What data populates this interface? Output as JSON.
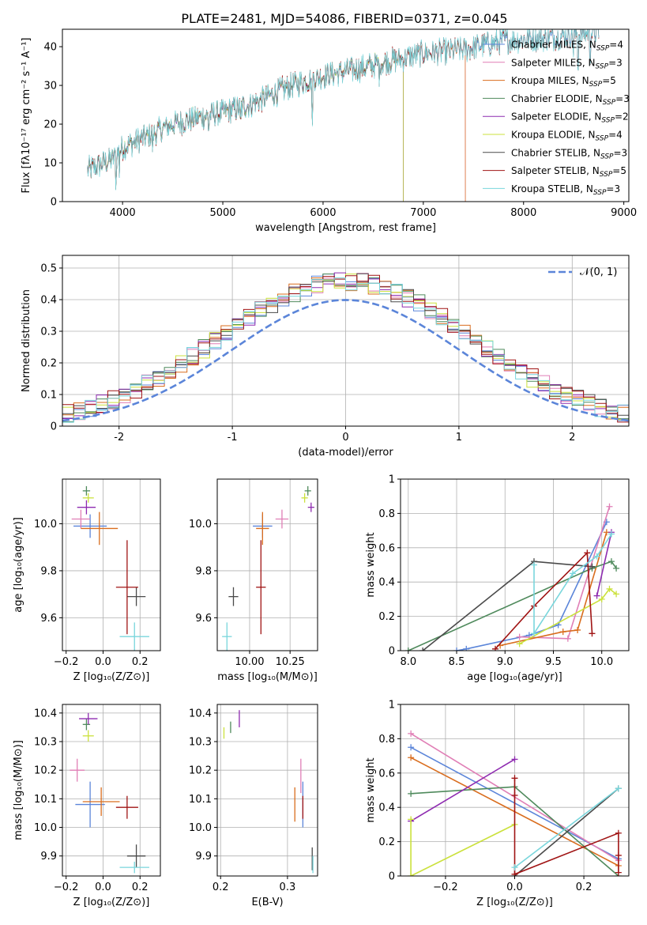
{
  "title": "PLATE=2481, MJD=54086, FIBERID=0371, z=0.045",
  "colors": {
    "Chabrier MILES": "#5b85d9",
    "Salpeter MILES": "#e07fb6",
    "Kroupa MILES": "#d96d1e",
    "Chabrier ELODIE": "#4f8a5c",
    "Salpeter ELODIE": "#8e2bb0",
    "Kroupa ELODIE": "#cbe13c",
    "Chabrier STELIB": "#4a4a4a",
    "Salpeter STELIB": "#a01414",
    "Kroupa STELIB": "#79d6dc"
  },
  "chart_data": [
    {
      "id": "spectrum",
      "type": "line",
      "title": "",
      "xlabel": "wavelength [Angstrom, rest frame]",
      "ylabel": "Flux [fλ10⁻¹⁷ erg cm⁻² s⁻¹ A⁻¹]",
      "xlim": [
        3400,
        9050
      ],
      "ylim": [
        0,
        44.5
      ],
      "xticks": [
        4000,
        5000,
        6000,
        7000,
        8000,
        9000
      ],
      "yticks": [
        0,
        10,
        20,
        30,
        40
      ],
      "grid": false,
      "legend_position": "right",
      "spectrum_range": [
        3650,
        8750
      ],
      "continuum": [
        [
          3650,
          8
        ],
        [
          3900,
          11
        ],
        [
          4000,
          14
        ],
        [
          4300,
          17.5
        ],
        [
          4500,
          20
        ],
        [
          4800,
          22
        ],
        [
          5000,
          23
        ],
        [
          5200,
          24.5
        ],
        [
          5400,
          26.5
        ],
        [
          5600,
          29
        ],
        [
          5800,
          31
        ],
        [
          6000,
          32.5
        ],
        [
          6200,
          33.5
        ],
        [
          6400,
          34.5
        ],
        [
          6600,
          36
        ],
        [
          6800,
          37
        ],
        [
          7000,
          38.3
        ],
        [
          7200,
          38.7
        ],
        [
          7400,
          39.2
        ],
        [
          7600,
          40.5
        ],
        [
          7800,
          41.5
        ],
        [
          8000,
          42
        ],
        [
          8200,
          42.3
        ],
        [
          8500,
          43
        ],
        [
          8750,
          44
        ]
      ],
      "series": [
        {
          "name": "Chabrier MILES",
          "label": "Chabrier MILES, N",
          "sub": "SSP",
          "n": "4",
          "end_wavelength": 8750
        },
        {
          "name": "Salpeter MILES",
          "label": "Salpeter MILES, N",
          "sub": "SSP",
          "n": "3",
          "end_wavelength": 7420
        },
        {
          "name": "Kroupa MILES",
          "label": "Kroupa MILES, N",
          "sub": "SSP",
          "n": "5",
          "end_wavelength": 7420
        },
        {
          "name": "Chabrier ELODIE",
          "label": "Chabrier ELODIE, N",
          "sub": "SSP",
          "n": "3",
          "end_wavelength": 6800
        },
        {
          "name": "Salpeter ELODIE",
          "label": "Salpeter ELODIE, N",
          "sub": "SSP",
          "n": "2",
          "end_wavelength": 6800
        },
        {
          "name": "Kroupa ELODIE",
          "label": "Kroupa ELODIE, N",
          "sub": "SSP",
          "n": "4",
          "end_wavelength": 6800
        },
        {
          "name": "Chabrier STELIB",
          "label": "Chabrier STELIB, N",
          "sub": "SSP",
          "n": "3",
          "end_wavelength": 8750
        },
        {
          "name": "Salpeter STELIB",
          "label": "Salpeter STELIB, N",
          "sub": "SSP",
          "n": "5",
          "end_wavelength": 8750
        },
        {
          "name": "Kroupa STELIB",
          "label": "Kroupa STELIB, N",
          "sub": "SSP",
          "n": "3",
          "end_wavelength": 8750
        }
      ]
    },
    {
      "id": "residuals",
      "type": "line",
      "xlabel": "(data-model)/error",
      "ylabel": "Normed distribution",
      "xlim": [
        -2.5,
        2.5
      ],
      "ylim": [
        0,
        0.54
      ],
      "xticks": [
        -2,
        -1,
        0,
        1,
        2
      ],
      "yticks": [
        0.0,
        0.1,
        0.2,
        0.3,
        0.4,
        0.5
      ],
      "grid": true,
      "legend": [
        {
          "label": "𝒩(0, 1)",
          "style": "dashed",
          "color": "#5b85d9"
        }
      ],
      "legend_position": "top-right",
      "bin_width": 0.1,
      "histogram_shape": "normal with sigma≈1, peak≈0.46-0.52 near 0",
      "series_count": 9
    },
    {
      "id": "age-vs-Z",
      "type": "scatter",
      "xlabel": "Z [log₁₀(Z/Z⊙)]",
      "ylabel": "age  [log₁₀(age/yr)]",
      "xlim": [
        -0.22,
        0.31
      ],
      "ylim": [
        9.46,
        10.19
      ],
      "xticks": [
        -0.2,
        0.0,
        0.2
      ],
      "xticklabels": [
        "−0.2",
        "0.0",
        "0.2"
      ],
      "yticks": [
        9.6,
        9.8,
        10.0
      ],
      "yticklabels": [
        "9.6",
        "9.8",
        "10.0"
      ],
      "grid": true,
      "points": [
        {
          "series": "Chabrier MILES",
          "x": -0.07,
          "y": 9.99,
          "xerr": 0.09,
          "yerr": 0.05
        },
        {
          "series": "Salpeter MILES",
          "x": -0.12,
          "y": 10.02,
          "xerr": 0.05,
          "yerr": 0.04
        },
        {
          "series": "Kroupa MILES",
          "x": -0.02,
          "y": 9.98,
          "xerr": 0.1,
          "yerr": 0.07
        },
        {
          "series": "Chabrier ELODIE",
          "x": -0.09,
          "y": 10.14,
          "xerr": 0.02,
          "yerr": 0.02
        },
        {
          "series": "Salpeter ELODIE",
          "x": -0.09,
          "y": 10.07,
          "xerr": 0.05,
          "yerr": 0.03
        },
        {
          "series": "Kroupa ELODIE",
          "x": -0.08,
          "y": 10.11,
          "xerr": 0.03,
          "yerr": 0.02
        },
        {
          "series": "Chabrier STELIB",
          "x": 0.18,
          "y": 9.69,
          "xerr": 0.05,
          "yerr": 0.04
        },
        {
          "series": "Salpeter STELIB",
          "x": 0.13,
          "y": 9.73,
          "xerr": 0.06,
          "yerr": 0.2
        },
        {
          "series": "Kroupa STELIB",
          "x": 0.17,
          "y": 9.52,
          "xerr": 0.08,
          "yerr": 0.06
        }
      ]
    },
    {
      "id": "age-vs-mass",
      "type": "scatter",
      "xlabel": "mass [log₁₀(M/M⊙)]",
      "ylabel": "",
      "xlim": [
        9.8,
        10.42
      ],
      "ylim": [
        9.46,
        10.19
      ],
      "xticks": [
        10.0,
        10.25
      ],
      "xticklabels": [
        "10.00",
        "10.25"
      ],
      "yticks": [
        9.6,
        9.8,
        10.0
      ],
      "yticklabels": [
        "9.6",
        "9.8",
        "10.0"
      ],
      "grid": true,
      "points": [
        {
          "series": "Chabrier MILES",
          "x": 10.08,
          "y": 9.99,
          "xerr": 0.06,
          "yerr": 0.05
        },
        {
          "series": "Salpeter MILES",
          "x": 10.2,
          "y": 10.02,
          "xerr": 0.04,
          "yerr": 0.04
        },
        {
          "series": "Kroupa MILES",
          "x": 10.08,
          "y": 9.98,
          "xerr": 0.04,
          "yerr": 0.07
        },
        {
          "series": "Chabrier ELODIE",
          "x": 10.36,
          "y": 10.14,
          "xerr": 0.02,
          "yerr": 0.02
        },
        {
          "series": "Salpeter ELODIE",
          "x": 10.38,
          "y": 10.07,
          "xerr": 0.02,
          "yerr": 0.02
        },
        {
          "series": "Kroupa ELODIE",
          "x": 10.34,
          "y": 10.11,
          "xerr": 0.02,
          "yerr": 0.02
        },
        {
          "series": "Chabrier STELIB",
          "x": 9.9,
          "y": 9.69,
          "xerr": 0.03,
          "yerr": 0.04
        },
        {
          "series": "Salpeter STELIB",
          "x": 10.07,
          "y": 9.73,
          "xerr": 0.03,
          "yerr": 0.2
        },
        {
          "series": "Kroupa STELIB",
          "x": 9.86,
          "y": 9.52,
          "xerr": 0.03,
          "yerr": 0.06
        }
      ]
    },
    {
      "id": "mass-weight-vs-age",
      "type": "line",
      "xlabel": "age  [log₁₀(age/yr)]",
      "ylabel": "mass weight",
      "xlim": [
        7.92,
        10.28
      ],
      "ylim": [
        0,
        1.0
      ],
      "xticks": [
        8.0,
        8.5,
        9.0,
        9.5,
        10.0
      ],
      "xticklabels": [
        "8.0",
        "8.5",
        "9.0",
        "9.5",
        "10.0"
      ],
      "yticks": [
        0.0,
        0.2,
        0.4,
        0.6,
        0.8,
        1.0
      ],
      "grid": true,
      "series": [
        {
          "name": "Chabrier MILES",
          "points": [
            [
              8.5,
              0.0
            ],
            [
              8.6,
              0.01
            ],
            [
              9.25,
              0.09
            ],
            [
              9.55,
              0.15
            ],
            [
              10.05,
              0.75
            ]
          ]
        },
        {
          "name": "Salpeter MILES",
          "points": [
            [
              9.15,
              0.08
            ],
            [
              9.65,
              0.07
            ],
            [
              10.08,
              0.84
            ]
          ]
        },
        {
          "name": "Kroupa MILES",
          "points": [
            [
              8.95,
              0.03
            ],
            [
              9.6,
              0.11
            ],
            [
              9.75,
              0.12
            ],
            [
              10.05,
              0.69
            ]
          ]
        },
        {
          "name": "Chabrier ELODIE",
          "points": [
            [
              8.0,
              0.0
            ],
            [
              9.9,
              0.48
            ],
            [
              10.1,
              0.52
            ],
            [
              10.15,
              0.48
            ]
          ]
        },
        {
          "name": "Salpeter ELODIE",
          "points": [
            [
              9.95,
              0.32
            ],
            [
              10.1,
              0.69
            ]
          ]
        },
        {
          "name": "Kroupa ELODIE",
          "points": [
            [
              9.15,
              0.04
            ],
            [
              10.0,
              0.3
            ],
            [
              10.08,
              0.36
            ],
            [
              10.15,
              0.33
            ]
          ]
        },
        {
          "name": "Chabrier STELIB",
          "points": [
            [
              8.15,
              0.0
            ],
            [
              9.3,
              0.52
            ],
            [
              9.9,
              0.49
            ]
          ]
        },
        {
          "name": "Salpeter STELIB",
          "points": [
            [
              8.9,
              0.01
            ],
            [
              9.3,
              0.26
            ],
            [
              9.85,
              0.57
            ],
            [
              9.9,
              0.1
            ]
          ]
        },
        {
          "name": "Kroupa STELIB",
          "points": [
            [
              9.3,
              0.5
            ],
            [
              9.3,
              0.1
            ],
            [
              9.7,
              0.45
            ],
            [
              9.95,
              0.55
            ],
            [
              10.1,
              0.68
            ]
          ]
        }
      ]
    },
    {
      "id": "mass-vs-Z",
      "type": "scatter",
      "xlabel": "Z [log₁₀(Z/Z⊙)]",
      "ylabel": "mass [log₁₀(M/M⊙)]",
      "xlim": [
        -0.22,
        0.31
      ],
      "ylim": [
        9.83,
        10.43
      ],
      "xticks": [
        -0.2,
        0.0,
        0.2
      ],
      "xticklabels": [
        "−0.2",
        "0.0",
        "0.2"
      ],
      "yticks": [
        9.9,
        10.0,
        10.1,
        10.2,
        10.3,
        10.4
      ],
      "yticklabels": [
        "9.9",
        "10.0",
        "10.1",
        "10.2",
        "10.3",
        "10.4"
      ],
      "grid": true,
      "points": [
        {
          "series": "Chabrier MILES",
          "x": -0.07,
          "y": 10.08,
          "xerr": 0.08,
          "yerr": 0.08
        },
        {
          "series": "Salpeter MILES",
          "x": -0.14,
          "y": 10.2,
          "xerr": 0.04,
          "yerr": 0.04
        },
        {
          "series": "Kroupa MILES",
          "x": -0.01,
          "y": 10.09,
          "xerr": 0.1,
          "yerr": 0.05
        },
        {
          "series": "Chabrier ELODIE",
          "x": -0.09,
          "y": 10.36,
          "xerr": 0.02,
          "yerr": 0.02
        },
        {
          "series": "Salpeter ELODIE",
          "x": -0.08,
          "y": 10.38,
          "xerr": 0.05,
          "yerr": 0.02
        },
        {
          "series": "Kroupa ELODIE",
          "x": -0.08,
          "y": 10.32,
          "xerr": 0.03,
          "yerr": 0.02
        },
        {
          "series": "Chabrier STELIB",
          "x": 0.18,
          "y": 9.9,
          "xerr": 0.05,
          "yerr": 0.04
        },
        {
          "series": "Salpeter STELIB",
          "x": 0.13,
          "y": 10.07,
          "xerr": 0.06,
          "yerr": 0.04
        },
        {
          "series": "Kroupa STELIB",
          "x": 0.17,
          "y": 9.86,
          "xerr": 0.08,
          "yerr": 0.02
        }
      ]
    },
    {
      "id": "mass-vs-EBV",
      "type": "scatter",
      "xlabel": "E(B-V)",
      "ylabel": "",
      "xlim": [
        0.195,
        0.345
      ],
      "ylim": [
        9.83,
        10.43
      ],
      "xticks": [
        0.2,
        0.3
      ],
      "xticklabels": [
        "0.2",
        "0.3"
      ],
      "yticks": [
        9.9,
        10.0,
        10.1,
        10.2,
        10.3,
        10.4
      ],
      "yticklabels": [
        "9.9",
        "10.0",
        "10.1",
        "10.2",
        "10.3",
        "10.4"
      ],
      "grid": true,
      "points": [
        {
          "series": "Chabrier MILES",
          "x": 0.323,
          "y": 10.08,
          "xerr": 0.0,
          "yerr": 0.08
        },
        {
          "series": "Salpeter MILES",
          "x": 0.32,
          "y": 10.18,
          "xerr": 0.0,
          "yerr": 0.06
        },
        {
          "series": "Kroupa MILES",
          "x": 0.311,
          "y": 10.08,
          "xerr": 0.0,
          "yerr": 0.06
        },
        {
          "series": "Chabrier ELODIE",
          "x": 0.215,
          "y": 10.35,
          "xerr": 0.0,
          "yerr": 0.02
        },
        {
          "series": "Salpeter ELODIE",
          "x": 0.228,
          "y": 10.38,
          "xerr": 0.0,
          "yerr": 0.03
        },
        {
          "series": "Kroupa ELODIE",
          "x": 0.205,
          "y": 10.33,
          "xerr": 0.0,
          "yerr": 0.02
        },
        {
          "series": "Chabrier STELIB",
          "x": 0.337,
          "y": 9.89,
          "xerr": 0.0,
          "yerr": 0.04
        },
        {
          "series": "Salpeter STELIB",
          "x": 0.323,
          "y": 10.07,
          "xerr": 0.0,
          "yerr": 0.04
        },
        {
          "series": "Kroupa STELIB",
          "x": 0.338,
          "y": 9.87,
          "xerr": 0.0,
          "yerr": 0.03
        }
      ]
    },
    {
      "id": "mass-weight-vs-Z",
      "type": "line",
      "xlabel": "Z [log₁₀(Z/Z⊙)]",
      "ylabel": "mass weight",
      "xlim": [
        -0.33,
        0.33
      ],
      "ylim": [
        0,
        1.0
      ],
      "xticks": [
        -0.2,
        0.0,
        0.2
      ],
      "xticklabels": [
        "−0.2",
        "0.0",
        "0.2"
      ],
      "yticks": [
        0.0,
        0.2,
        0.4,
        0.6,
        0.8,
        1.0
      ],
      "grid": true,
      "series": [
        {
          "name": "Chabrier MILES",
          "points": [
            [
              -0.3,
              0.75
            ],
            [
              0.3,
              0.1
            ]
          ]
        },
        {
          "name": "Salpeter MILES",
          "points": [
            [
              -0.3,
              0.83
            ],
            [
              0.3,
              0.09
            ]
          ]
        },
        {
          "name": "Kroupa MILES",
          "points": [
            [
              -0.3,
              0.69
            ],
            [
              0.3,
              0.06
            ]
          ]
        },
        {
          "name": "Chabrier ELODIE",
          "points": [
            [
              -0.3,
              0.48
            ],
            [
              0.0,
              0.52
            ],
            [
              0.3,
              0.0
            ]
          ]
        },
        {
          "name": "Salpeter ELODIE",
          "points": [
            [
              -0.3,
              0.32
            ],
            [
              0.0,
              0.68
            ]
          ]
        },
        {
          "name": "Kroupa ELODIE",
          "points": [
            [
              -0.3,
              0.33
            ],
            [
              -0.3,
              0.0
            ],
            [
              0.0,
              0.3
            ]
          ]
        },
        {
          "name": "Chabrier STELIB",
          "points": [
            [
              0.0,
              0.0
            ],
            [
              0.3,
              0.51
            ]
          ]
        },
        {
          "name": "Salpeter STELIB",
          "points": [
            [
              0.0,
              0.57
            ],
            [
              0.0,
              0.47
            ],
            [
              0.0,
              0.01
            ],
            [
              0.3,
              0.25
            ],
            [
              0.3,
              0.12
            ],
            [
              0.3,
              0.02
            ]
          ]
        },
        {
          "name": "Kroupa STELIB",
          "points": [
            [
              0.0,
              0.05
            ],
            [
              0.3,
              0.51
            ]
          ]
        }
      ]
    }
  ]
}
